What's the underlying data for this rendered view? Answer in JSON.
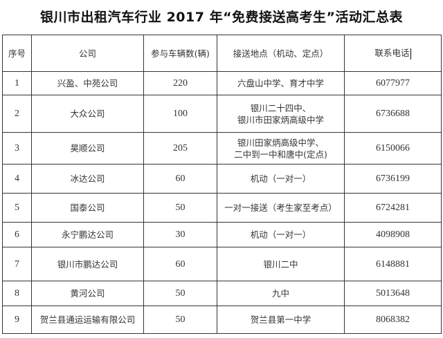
{
  "title": "银川市出租汽车行业 2017 年“免费接送高考生”活动汇总表",
  "table": {
    "headers": [
      "序号",
      "公司",
      "参与车辆数(辆)",
      "接送地点（机动、定点）",
      "联系电话"
    ],
    "rows": [
      [
        "1",
        "兴盈、中苑公司",
        "220",
        "六盘山中学、育才中学",
        "6077977"
      ],
      [
        "2",
        "大众公司",
        "100",
        "银川二十四中、\n银川市田家炳高级中学",
        "6736688"
      ],
      [
        "3",
        "昊顺公司",
        "205",
        "银川田家炳高级中学、\n二中到一中和唐中(定点)",
        "6150066"
      ],
      [
        "4",
        "冰达公司",
        "60",
        "机动（一对一）",
        "6736199"
      ],
      [
        "5",
        "国泰公司",
        "50",
        "一对一接送（考生家至考点）",
        "6724281"
      ],
      [
        "6",
        "永宁鹏达公司",
        "30",
        "机动（一对一）",
        "4098908"
      ],
      [
        "7",
        "银川市鹏达公司",
        "60",
        "银川二中",
        "6148881"
      ],
      [
        "8",
        "黄河公司",
        "50",
        "九中",
        "5013648"
      ],
      [
        "9",
        "贺兰县通运运输有限公司",
        "50",
        "贺兰县第一中学",
        "8068382"
      ]
    ]
  }
}
